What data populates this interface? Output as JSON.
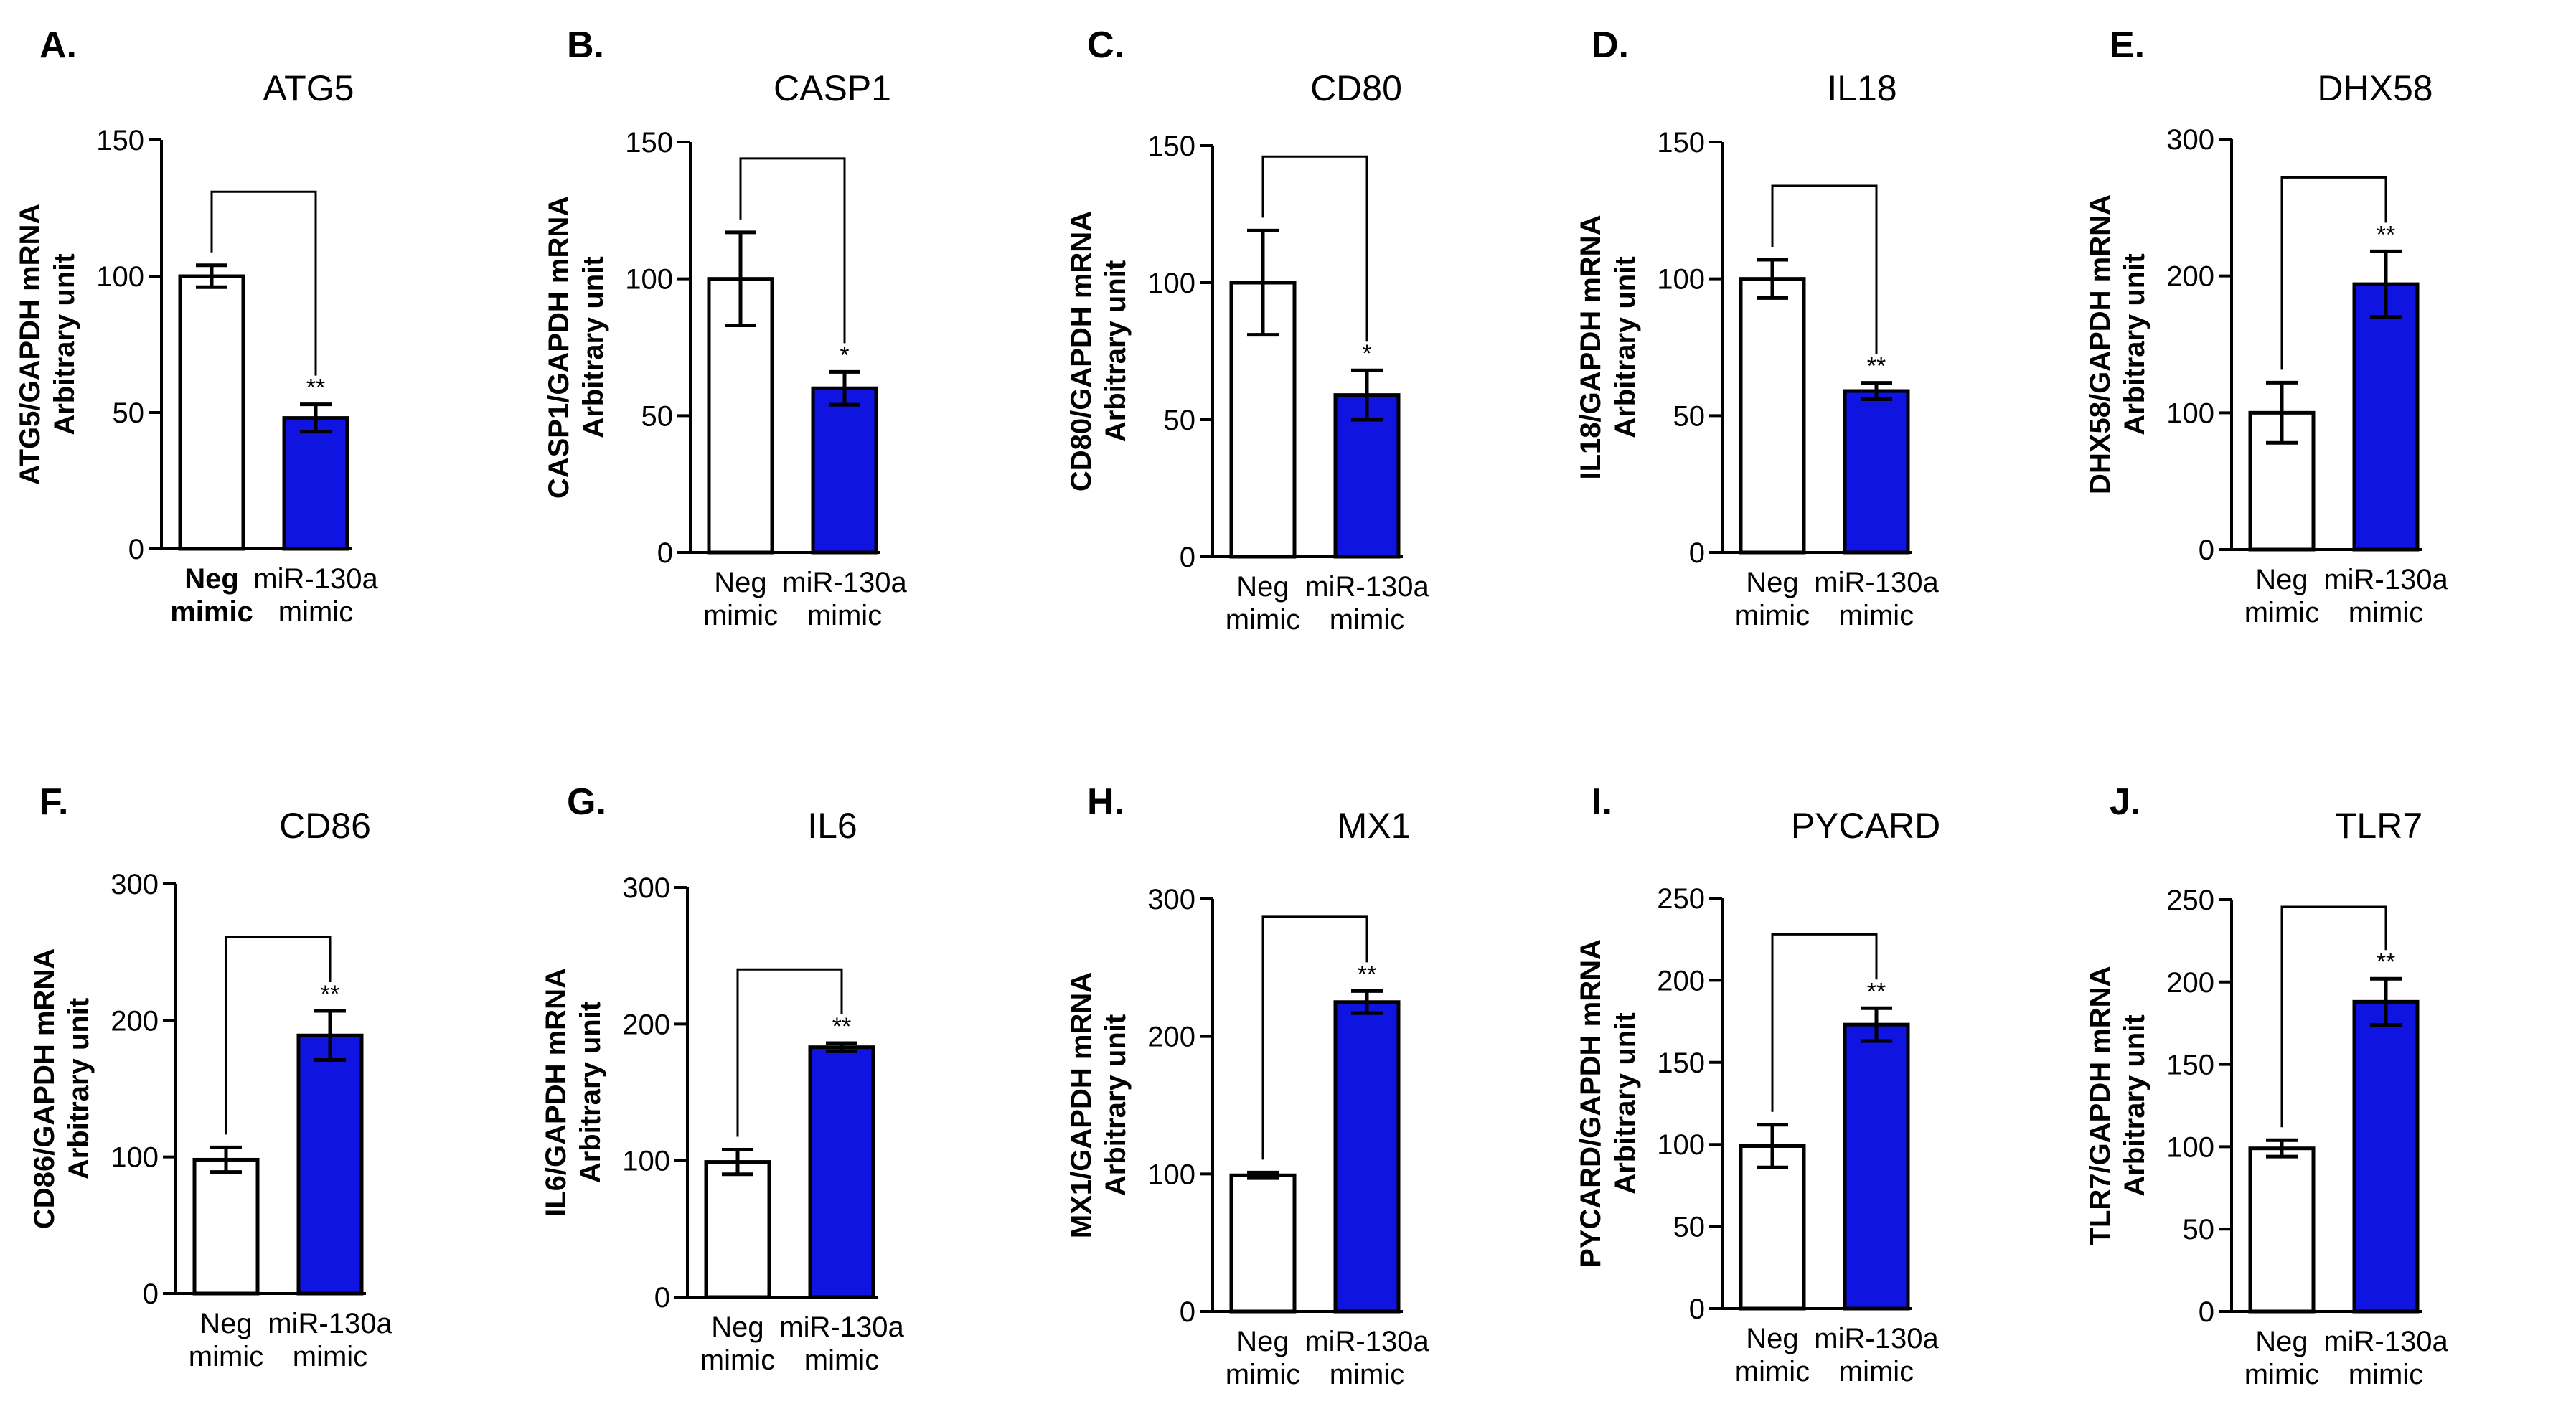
{
  "colors": {
    "neg_fill": "#ffffff",
    "mir_fill": "#0f14e0",
    "stroke": "#000000"
  },
  "chart_data": [
    {
      "type": "bar",
      "letter": "A.",
      "title": "ATG5",
      "ylabel_line1": "ATG5/GAPDH mRNA",
      "ylabel_line2": "Arbitrary unit",
      "ylim": [
        0,
        150
      ],
      "yticks": [
        "0",
        "50",
        "100",
        "150"
      ],
      "categories": [
        [
          "Neg",
          "mimic"
        ],
        [
          "miR-130a",
          "mimic"
        ]
      ],
      "bold_first_category": true,
      "values": [
        100,
        48
      ],
      "errors": [
        4,
        5
      ],
      "significance": "**"
    },
    {
      "type": "bar",
      "letter": "B.",
      "title": "CASP1",
      "ylabel_line1": "CASP1/GAPDH mRNA",
      "ylabel_line2": "Arbitrary unit",
      "ylim": [
        0,
        150
      ],
      "yticks": [
        "0",
        "50",
        "100",
        "150"
      ],
      "categories": [
        [
          "Neg",
          "mimic"
        ],
        [
          "miR-130a",
          "mimic"
        ]
      ],
      "bold_first_category": false,
      "values": [
        100,
        60
      ],
      "errors": [
        17,
        6
      ],
      "significance": "*"
    },
    {
      "type": "bar",
      "letter": "C.",
      "title": "CD80",
      "ylabel_line1": "CD80/GAPDH mRNA",
      "ylabel_line2": "Arbitrary unit",
      "ylim": [
        0,
        150
      ],
      "yticks": [
        "0",
        "50",
        "100",
        "150"
      ],
      "categories": [
        [
          "Neg",
          "mimic"
        ],
        [
          "miR-130a",
          "mimic"
        ]
      ],
      "bold_first_category": false,
      "values": [
        100,
        59
      ],
      "errors": [
        19,
        9
      ],
      "significance": "*"
    },
    {
      "type": "bar",
      "letter": "D.",
      "title": "IL18",
      "ylabel_line1": "IL18/GAPDH mRNA",
      "ylabel_line2": "Arbitrary unit",
      "ylim": [
        0,
        150
      ],
      "yticks": [
        "0",
        "50",
        "100",
        "150"
      ],
      "categories": [
        [
          "Neg",
          "mimic"
        ],
        [
          "miR-130a",
          "mimic"
        ]
      ],
      "bold_first_category": false,
      "values": [
        100,
        59
      ],
      "errors": [
        7,
        3
      ],
      "significance": "**"
    },
    {
      "type": "bar",
      "letter": "E.",
      "title": "DHX58",
      "ylabel_line1": "DHX58/GAPDH mRNA",
      "ylabel_line2": "Arbitrary unit",
      "ylim": [
        0,
        300
      ],
      "yticks": [
        "0",
        "100",
        "200",
        "300"
      ],
      "categories": [
        [
          "Neg",
          "mimic"
        ],
        [
          "miR-130a",
          "mimic"
        ]
      ],
      "bold_first_category": false,
      "values": [
        100,
        194
      ],
      "errors": [
        22,
        24
      ],
      "significance": "**"
    },
    {
      "type": "bar",
      "letter": "F.",
      "title": "CD86",
      "ylabel_line1": "CD86/GAPDH mRNA",
      "ylabel_line2": "Arbitrary unit",
      "ylim": [
        0,
        300
      ],
      "yticks": [
        "0",
        "100",
        "200",
        "300"
      ],
      "categories": [
        [
          "Neg",
          "mimic"
        ],
        [
          "miR-130a",
          "mimic"
        ]
      ],
      "bold_first_category": false,
      "values": [
        98,
        189
      ],
      "errors": [
        9,
        18
      ],
      "significance": "**"
    },
    {
      "type": "bar",
      "letter": "G.",
      "title": "IL6",
      "ylabel_line1": "IL6/GAPDH mRNA",
      "ylabel_line2": "Arbitrary unit",
      "ylim": [
        0,
        300
      ],
      "yticks": [
        "0",
        "100",
        "200",
        "300"
      ],
      "categories": [
        [
          "Neg",
          "mimic"
        ],
        [
          "miR-130a",
          "mimic"
        ]
      ],
      "bold_first_category": false,
      "values": [
        99,
        183
      ],
      "errors": [
        9,
        3
      ],
      "significance": "**"
    },
    {
      "type": "bar",
      "letter": "H.",
      "title": "MX1",
      "ylabel_line1": "MX1/GAPDH mRNA",
      "ylabel_line2": "Arbitrary unit",
      "ylim": [
        0,
        300
      ],
      "yticks": [
        "0",
        "100",
        "200",
        "300"
      ],
      "categories": [
        [
          "Neg",
          "mimic"
        ],
        [
          "miR-130a",
          "mimic"
        ]
      ],
      "bold_first_category": false,
      "values": [
        99,
        225
      ],
      "errors": [
        2,
        8
      ],
      "significance": "**"
    },
    {
      "type": "bar",
      "letter": "I.",
      "title": "PYCARD",
      "ylabel_line1": "PYCARD/GAPDH mRNA",
      "ylabel_line2": "Arbitrary unit",
      "ylim": [
        0,
        250
      ],
      "yticks": [
        "0",
        "50",
        "100",
        "150",
        "200",
        "250"
      ],
      "categories": [
        [
          "Neg",
          "mimic"
        ],
        [
          "miR-130a",
          "mimic"
        ]
      ],
      "bold_first_category": false,
      "values": [
        99,
        173
      ],
      "errors": [
        13,
        10
      ],
      "significance": "**"
    },
    {
      "type": "bar",
      "letter": "J.",
      "title": "TLR7",
      "ylabel_line1": "TLR7/GAPDH mRNA",
      "ylabel_line2": "Arbitrary unit",
      "ylim": [
        0,
        250
      ],
      "yticks": [
        "0",
        "50",
        "100",
        "150",
        "200",
        "250"
      ],
      "categories": [
        [
          "Neg",
          "mimic"
        ],
        [
          "miR-130a",
          "mimic"
        ]
      ],
      "bold_first_category": false,
      "values": [
        99,
        188
      ],
      "errors": [
        5,
        14
      ],
      "significance": "**"
    }
  ]
}
